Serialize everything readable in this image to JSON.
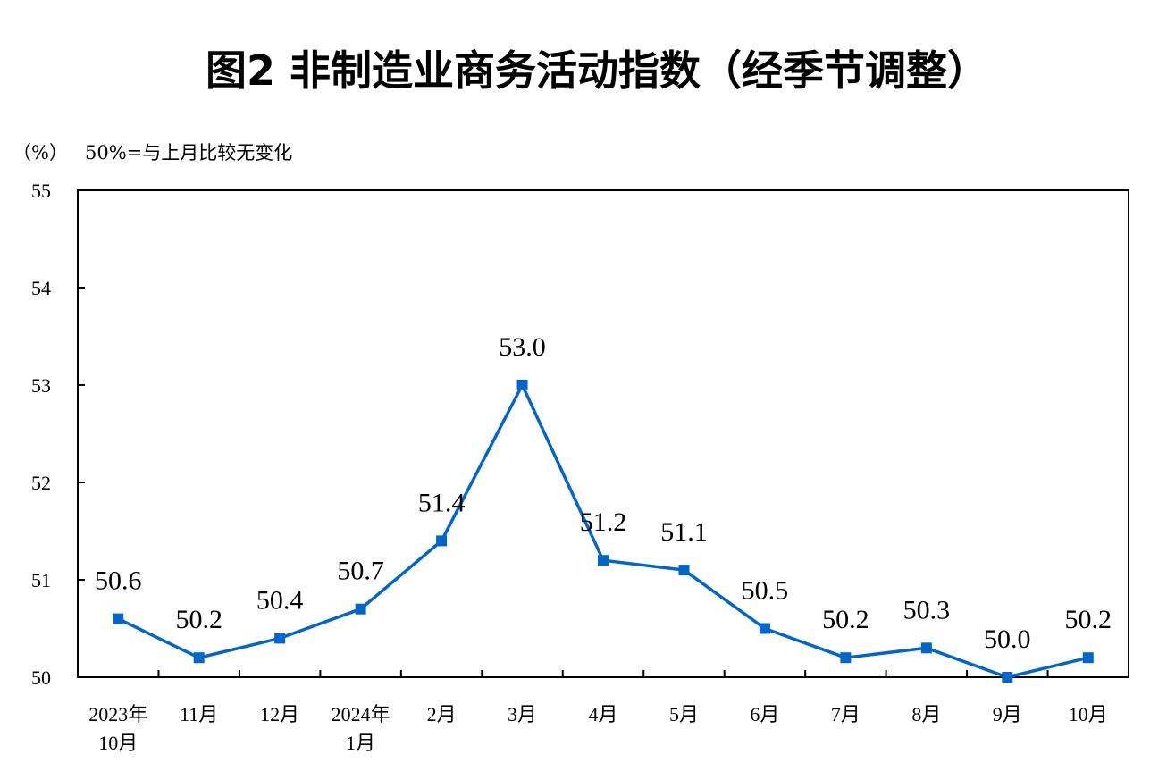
{
  "chart_data": {
    "type": "line",
    "title": "图2  非制造业商务活动指数（经季节调整）",
    "unit_label": "（%）",
    "note": "50%=与上月比较无变化",
    "xlabel": "",
    "ylabel": "",
    "ylim": [
      50,
      55
    ],
    "yticks": [
      "50",
      "51",
      "52",
      "53",
      "54",
      "55"
    ],
    "categories": [
      [
        "2023年",
        "10月"
      ],
      [
        "11月"
      ],
      [
        "12月"
      ],
      [
        "2024年",
        "1月"
      ],
      [
        "2月"
      ],
      [
        "3月"
      ],
      [
        "4月"
      ],
      [
        "5月"
      ],
      [
        "6月"
      ],
      [
        "7月"
      ],
      [
        "8月"
      ],
      [
        "9月"
      ],
      [
        "10月"
      ]
    ],
    "values": [
      50.6,
      50.2,
      50.4,
      50.7,
      51.4,
      53.0,
      51.2,
      51.1,
      50.5,
      50.2,
      50.3,
      50.0,
      50.2
    ],
    "data_labels": [
      "50.6",
      "50.2",
      "50.4",
      "50.7",
      "51.4",
      "53.0",
      "51.2",
      "51.1",
      "50.5",
      "50.2",
      "50.3",
      "50.0",
      "50.2"
    ],
    "line_color": "#0066CC",
    "marker": "square",
    "grid": false,
    "legend": "none"
  }
}
